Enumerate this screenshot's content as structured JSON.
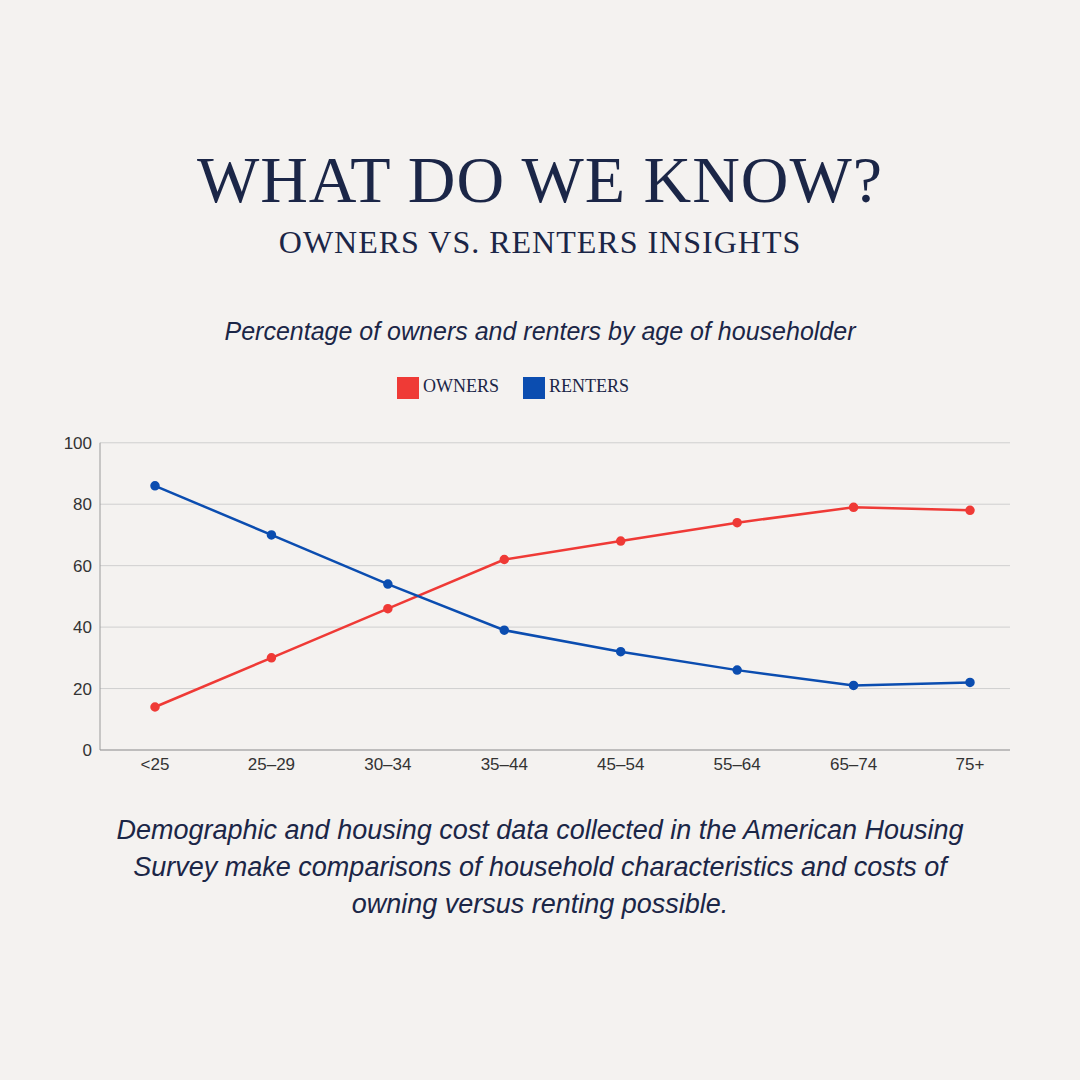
{
  "header": {
    "title": "WHAT DO WE KNOW?",
    "subtitle": "OWNERS VS. RENTERS INSIGHTS"
  },
  "chart_data": {
    "type": "line",
    "title": "Percentage of owners and renters by age of householder",
    "categories": [
      "<25",
      "25–29",
      "30–34",
      "35–44",
      "45–54",
      "55–64",
      "65–74",
      "75+"
    ],
    "series": [
      {
        "name": "OWNERS",
        "color": "#ef3a36",
        "values": [
          14,
          30,
          46,
          62,
          68,
          74,
          79,
          78
        ]
      },
      {
        "name": "RENTERS",
        "color": "#0b4db0",
        "values": [
          86,
          70,
          54,
          39,
          32,
          26,
          21,
          22
        ]
      }
    ],
    "ylim": [
      0,
      100
    ],
    "yticks": [
      0,
      20,
      40,
      60,
      80,
      100
    ],
    "grid": true,
    "legend": "top",
    "marker": "circle",
    "annotations": [
      "Demographic and housing cost data collected in the American Housing Survey make comparisons of household characteristics and costs of owning versus renting possible."
    ]
  }
}
